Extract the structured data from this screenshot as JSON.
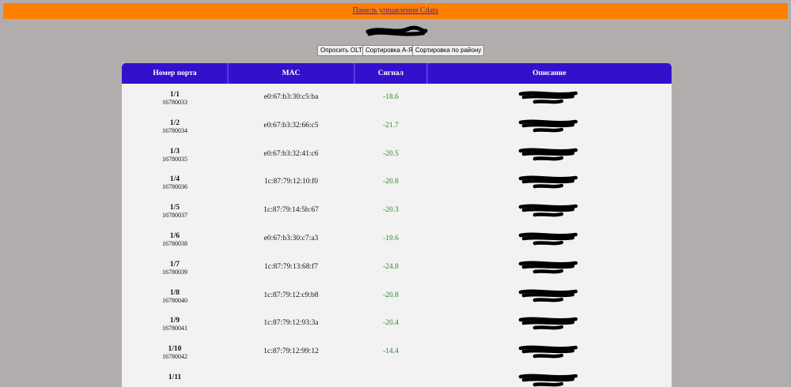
{
  "header": {
    "link": "Панель управления Cdata"
  },
  "buttons": [
    "Опросить OLT",
    "Сортировка А-Я",
    "Сортировка по району"
  ],
  "table": {
    "columns": [
      "Номер порта",
      "MAC",
      "Сигнал",
      "Описание"
    ],
    "rows": [
      {
        "port": "1/1",
        "id": "16780033",
        "mac": "e0:67:b3:30:c5:ba",
        "signal": "-18.6"
      },
      {
        "port": "1/2",
        "id": "16780034",
        "mac": "e0:67:b3:32:66:c5",
        "signal": "-21.7"
      },
      {
        "port": "1/3",
        "id": "16780035",
        "mac": "e0:67:b3:32:41:c6",
        "signal": "-20.5"
      },
      {
        "port": "1/4",
        "id": "16780036",
        "mac": "1c:87:79:12:10:f0",
        "signal": "-20.8"
      },
      {
        "port": "1/5",
        "id": "16780037",
        "mac": "1c:87:79:14:5b:67",
        "signal": "-20.3"
      },
      {
        "port": "1/6",
        "id": "16780038",
        "mac": "e0:67:b3:30:c7:a3",
        "signal": "-19.6"
      },
      {
        "port": "1/7",
        "id": "16780039",
        "mac": "1c:87:79:13:68:f7",
        "signal": "-24.8"
      },
      {
        "port": "1/8",
        "id": "16780040",
        "mac": "1c:87:79:12:c9:b8",
        "signal": "-20.8"
      },
      {
        "port": "1/9",
        "id": "16780041",
        "mac": "1c:87:79:12:93:3a",
        "signal": "-20.4"
      },
      {
        "port": "1/10",
        "id": "16780042",
        "mac": "1c:87:79:12:99:12",
        "signal": "-14.4"
      },
      {
        "port": "1/11"
      }
    ]
  }
}
